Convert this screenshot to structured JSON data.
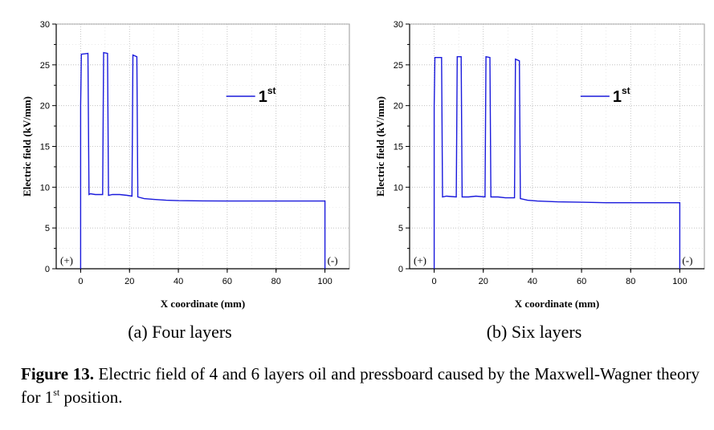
{
  "chart_data": [
    {
      "type": "line",
      "panel_caption": "(a) Four layers",
      "xlabel": "X coordinate (mm)",
      "ylabel": "Electric field (kV/mm)",
      "xlim": [
        -10,
        110
      ],
      "ylim": [
        0,
        30
      ],
      "xticks": [
        0,
        20,
        40,
        60,
        80,
        100
      ],
      "yticks": [
        0,
        5,
        10,
        15,
        20,
        25,
        30
      ],
      "grid": true,
      "legend_position": "top-right",
      "annotations": [
        {
          "text": "(+)",
          "position": "bottom-left"
        },
        {
          "text": "(-)",
          "position": "bottom-right"
        }
      ],
      "series": [
        {
          "name": "1",
          "name_superscript": "st",
          "color": "#1a1adc",
          "x": [
            0,
            0,
            0.3,
            3,
            3.4,
            4,
            6,
            8,
            9,
            9.4,
            11,
            11.4,
            13,
            16,
            19,
            21,
            21.4,
            23,
            23.4,
            26,
            30,
            35,
            40,
            50,
            60,
            70,
            80,
            90,
            100,
            100
          ],
          "y": [
            0,
            20,
            26.3,
            26.4,
            9.1,
            9.2,
            9.1,
            9.1,
            9.1,
            26.5,
            26.4,
            9.0,
            9.1,
            9.1,
            9.0,
            8.9,
            26.2,
            26.0,
            8.8,
            8.6,
            8.5,
            8.4,
            8.35,
            8.32,
            8.3,
            8.3,
            8.3,
            8.3,
            8.3,
            0
          ]
        }
      ]
    },
    {
      "type": "line",
      "panel_caption": "(b) Six layers",
      "xlabel": "X coordinate (mm)",
      "ylabel": "Electric field (kV/mm)",
      "xlim": [
        -10,
        110
      ],
      "ylim": [
        0,
        30
      ],
      "xticks": [
        0,
        20,
        40,
        60,
        80,
        100
      ],
      "yticks": [
        0,
        5,
        10,
        15,
        20,
        25,
        30
      ],
      "grid": true,
      "legend_position": "top-right",
      "annotations": [
        {
          "text": "(+)",
          "position": "bottom-left"
        },
        {
          "text": "(-)",
          "position": "bottom-right"
        }
      ],
      "series": [
        {
          "name": "1",
          "name_superscript": "st",
          "color": "#1a1adc",
          "x": [
            0,
            0,
            0.3,
            3,
            3.4,
            5,
            7,
            9,
            9.4,
            11,
            11.4,
            14,
            17,
            20.7,
            21.1,
            22.7,
            23.1,
            26,
            29,
            32.7,
            33.1,
            34.7,
            35.1,
            38,
            42,
            50,
            60,
            70,
            80,
            90,
            100,
            100
          ],
          "y": [
            0,
            20,
            25.9,
            25.9,
            8.8,
            8.9,
            8.85,
            8.8,
            26.0,
            26.0,
            8.8,
            8.8,
            8.9,
            8.8,
            26.0,
            25.9,
            8.8,
            8.8,
            8.7,
            8.7,
            25.7,
            25.5,
            8.6,
            8.4,
            8.3,
            8.2,
            8.15,
            8.1,
            8.1,
            8.1,
            8.1,
            0
          ]
        }
      ]
    }
  ],
  "figure_caption": {
    "label": "Figure 13.",
    "text_before_sup": " Electric field of 4 and 6 layers oil and pressboard caused by the Maxwell-Wagner theory for 1",
    "sup": "st",
    "text_after_sup": " position."
  }
}
